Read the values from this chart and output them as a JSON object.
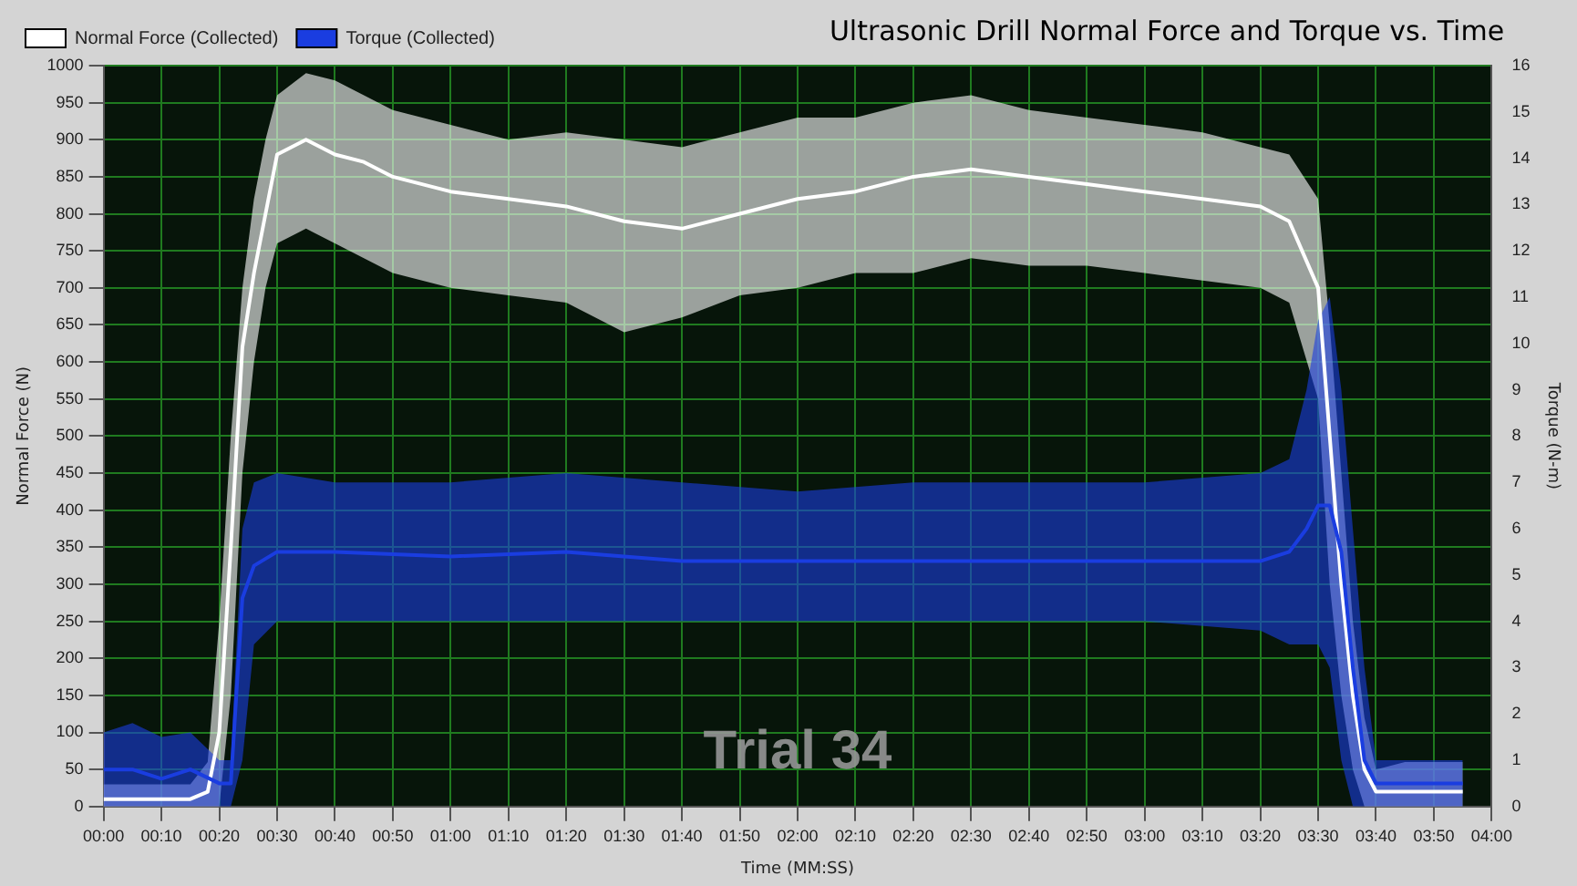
{
  "chart_data": {
    "type": "line",
    "title": "Ultrasonic Drill Normal Force and Torque vs. Time",
    "xlabel": "Time (MM:SS)",
    "ylabel": "Normal Force (N)",
    "y2label": "Torque (N-m)",
    "legend": "top left",
    "grid": true,
    "marker": "none",
    "line_style": "solid",
    "annotations": [
      "Trial 34"
    ],
    "xlim": [
      0,
      240
    ],
    "xticks": [
      {
        "value": 0,
        "label": "00:00"
      },
      {
        "value": 10,
        "label": "00:10"
      },
      {
        "value": 20,
        "label": "00:20"
      },
      {
        "value": 30,
        "label": "00:30"
      },
      {
        "value": 40,
        "label": "00:40"
      },
      {
        "value": 50,
        "label": "00:50"
      },
      {
        "value": 60,
        "label": "01:00"
      },
      {
        "value": 70,
        "label": "01:10"
      },
      {
        "value": 80,
        "label": "01:20"
      },
      {
        "value": 90,
        "label": "01:30"
      },
      {
        "value": 100,
        "label": "01:40"
      },
      {
        "value": 110,
        "label": "01:50"
      },
      {
        "value": 120,
        "label": "02:00"
      },
      {
        "value": 130,
        "label": "02:10"
      },
      {
        "value": 140,
        "label": "02:20"
      },
      {
        "value": 150,
        "label": "02:30"
      },
      {
        "value": 160,
        "label": "02:40"
      },
      {
        "value": 170,
        "label": "02:50"
      },
      {
        "value": 180,
        "label": "03:00"
      },
      {
        "value": 190,
        "label": "03:10"
      },
      {
        "value": 200,
        "label": "03:20"
      },
      {
        "value": 210,
        "label": "03:30"
      },
      {
        "value": 220,
        "label": "03:40"
      },
      {
        "value": 230,
        "label": "03:50"
      },
      {
        "value": 240,
        "label": "04:00"
      }
    ],
    "ylim": [
      0,
      1000
    ],
    "yticks": [
      0,
      50,
      100,
      150,
      200,
      250,
      300,
      350,
      400,
      450,
      500,
      550,
      600,
      650,
      700,
      750,
      800,
      850,
      900,
      950,
      1000
    ],
    "y2lim": [
      0,
      16
    ],
    "y2ticks": [
      0,
      1,
      2,
      3,
      4,
      5,
      6,
      7,
      8,
      9,
      10,
      11,
      12,
      13,
      14,
      15,
      16
    ],
    "series": [
      {
        "name": "Normal Force (Collected)",
        "color": "#ffffff",
        "x": [
          0,
          5,
          10,
          15,
          18,
          20,
          22,
          24,
          26,
          28,
          30,
          35,
          40,
          45,
          50,
          60,
          70,
          80,
          90,
          100,
          110,
          120,
          130,
          140,
          150,
          160,
          170,
          180,
          190,
          200,
          205,
          210,
          212,
          214,
          216,
          218,
          220,
          225,
          230,
          235
        ],
        "values": [
          10,
          10,
          10,
          10,
          20,
          100,
          350,
          620,
          720,
          800,
          880,
          900,
          880,
          870,
          850,
          830,
          820,
          810,
          790,
          780,
          800,
          820,
          830,
          850,
          860,
          850,
          840,
          830,
          820,
          810,
          790,
          700,
          500,
          300,
          150,
          50,
          20,
          20,
          20,
          20
        ],
        "upper": [
          30,
          30,
          30,
          30,
          60,
          250,
          500,
          700,
          820,
          900,
          960,
          990,
          980,
          960,
          940,
          920,
          900,
          910,
          900,
          890,
          910,
          930,
          930,
          950,
          960,
          940,
          930,
          920,
          910,
          890,
          880,
          820,
          650,
          450,
          250,
          120,
          50,
          60,
          60,
          60
        ],
        "lower": [
          0,
          0,
          0,
          0,
          0,
          0,
          150,
          450,
          600,
          700,
          760,
          780,
          760,
          740,
          720,
          700,
          690,
          680,
          640,
          660,
          690,
          700,
          720,
          720,
          740,
          730,
          730,
          720,
          710,
          700,
          680,
          550,
          300,
          150,
          50,
          0,
          0,
          0,
          0,
          0
        ]
      },
      {
        "name": "Torque (Collected)",
        "color": "#1a3de0",
        "axis": "y2",
        "x": [
          0,
          5,
          10,
          15,
          20,
          22,
          24,
          26,
          30,
          40,
          60,
          80,
          100,
          120,
          140,
          160,
          180,
          200,
          205,
          208,
          210,
          212,
          214,
          216,
          218,
          220,
          225,
          230,
          235
        ],
        "values": [
          0.8,
          0.8,
          0.6,
          0.8,
          0.5,
          0.5,
          4.5,
          5.2,
          5.5,
          5.5,
          5.4,
          5.5,
          5.3,
          5.3,
          5.3,
          5.3,
          5.3,
          5.3,
          5.5,
          6,
          6.5,
          6.5,
          5.5,
          3,
          1,
          0.5,
          0.5,
          0.5,
          0.5
        ],
        "upper": [
          1.6,
          1.8,
          1.5,
          1.6,
          1,
          1,
          6,
          7,
          7.2,
          7,
          7,
          7.2,
          7,
          6.8,
          7,
          7,
          7,
          7.2,
          7.5,
          9,
          10.5,
          11,
          9,
          6,
          3,
          1,
          1,
          1,
          1
        ],
        "lower": [
          0,
          0,
          0,
          0,
          0,
          0,
          1,
          3.5,
          4,
          4,
          4,
          4,
          4,
          4,
          4,
          4,
          4,
          3.8,
          3.5,
          3.5,
          3.5,
          3,
          1,
          0,
          0,
          0,
          0,
          0,
          0
        ]
      }
    ]
  }
}
